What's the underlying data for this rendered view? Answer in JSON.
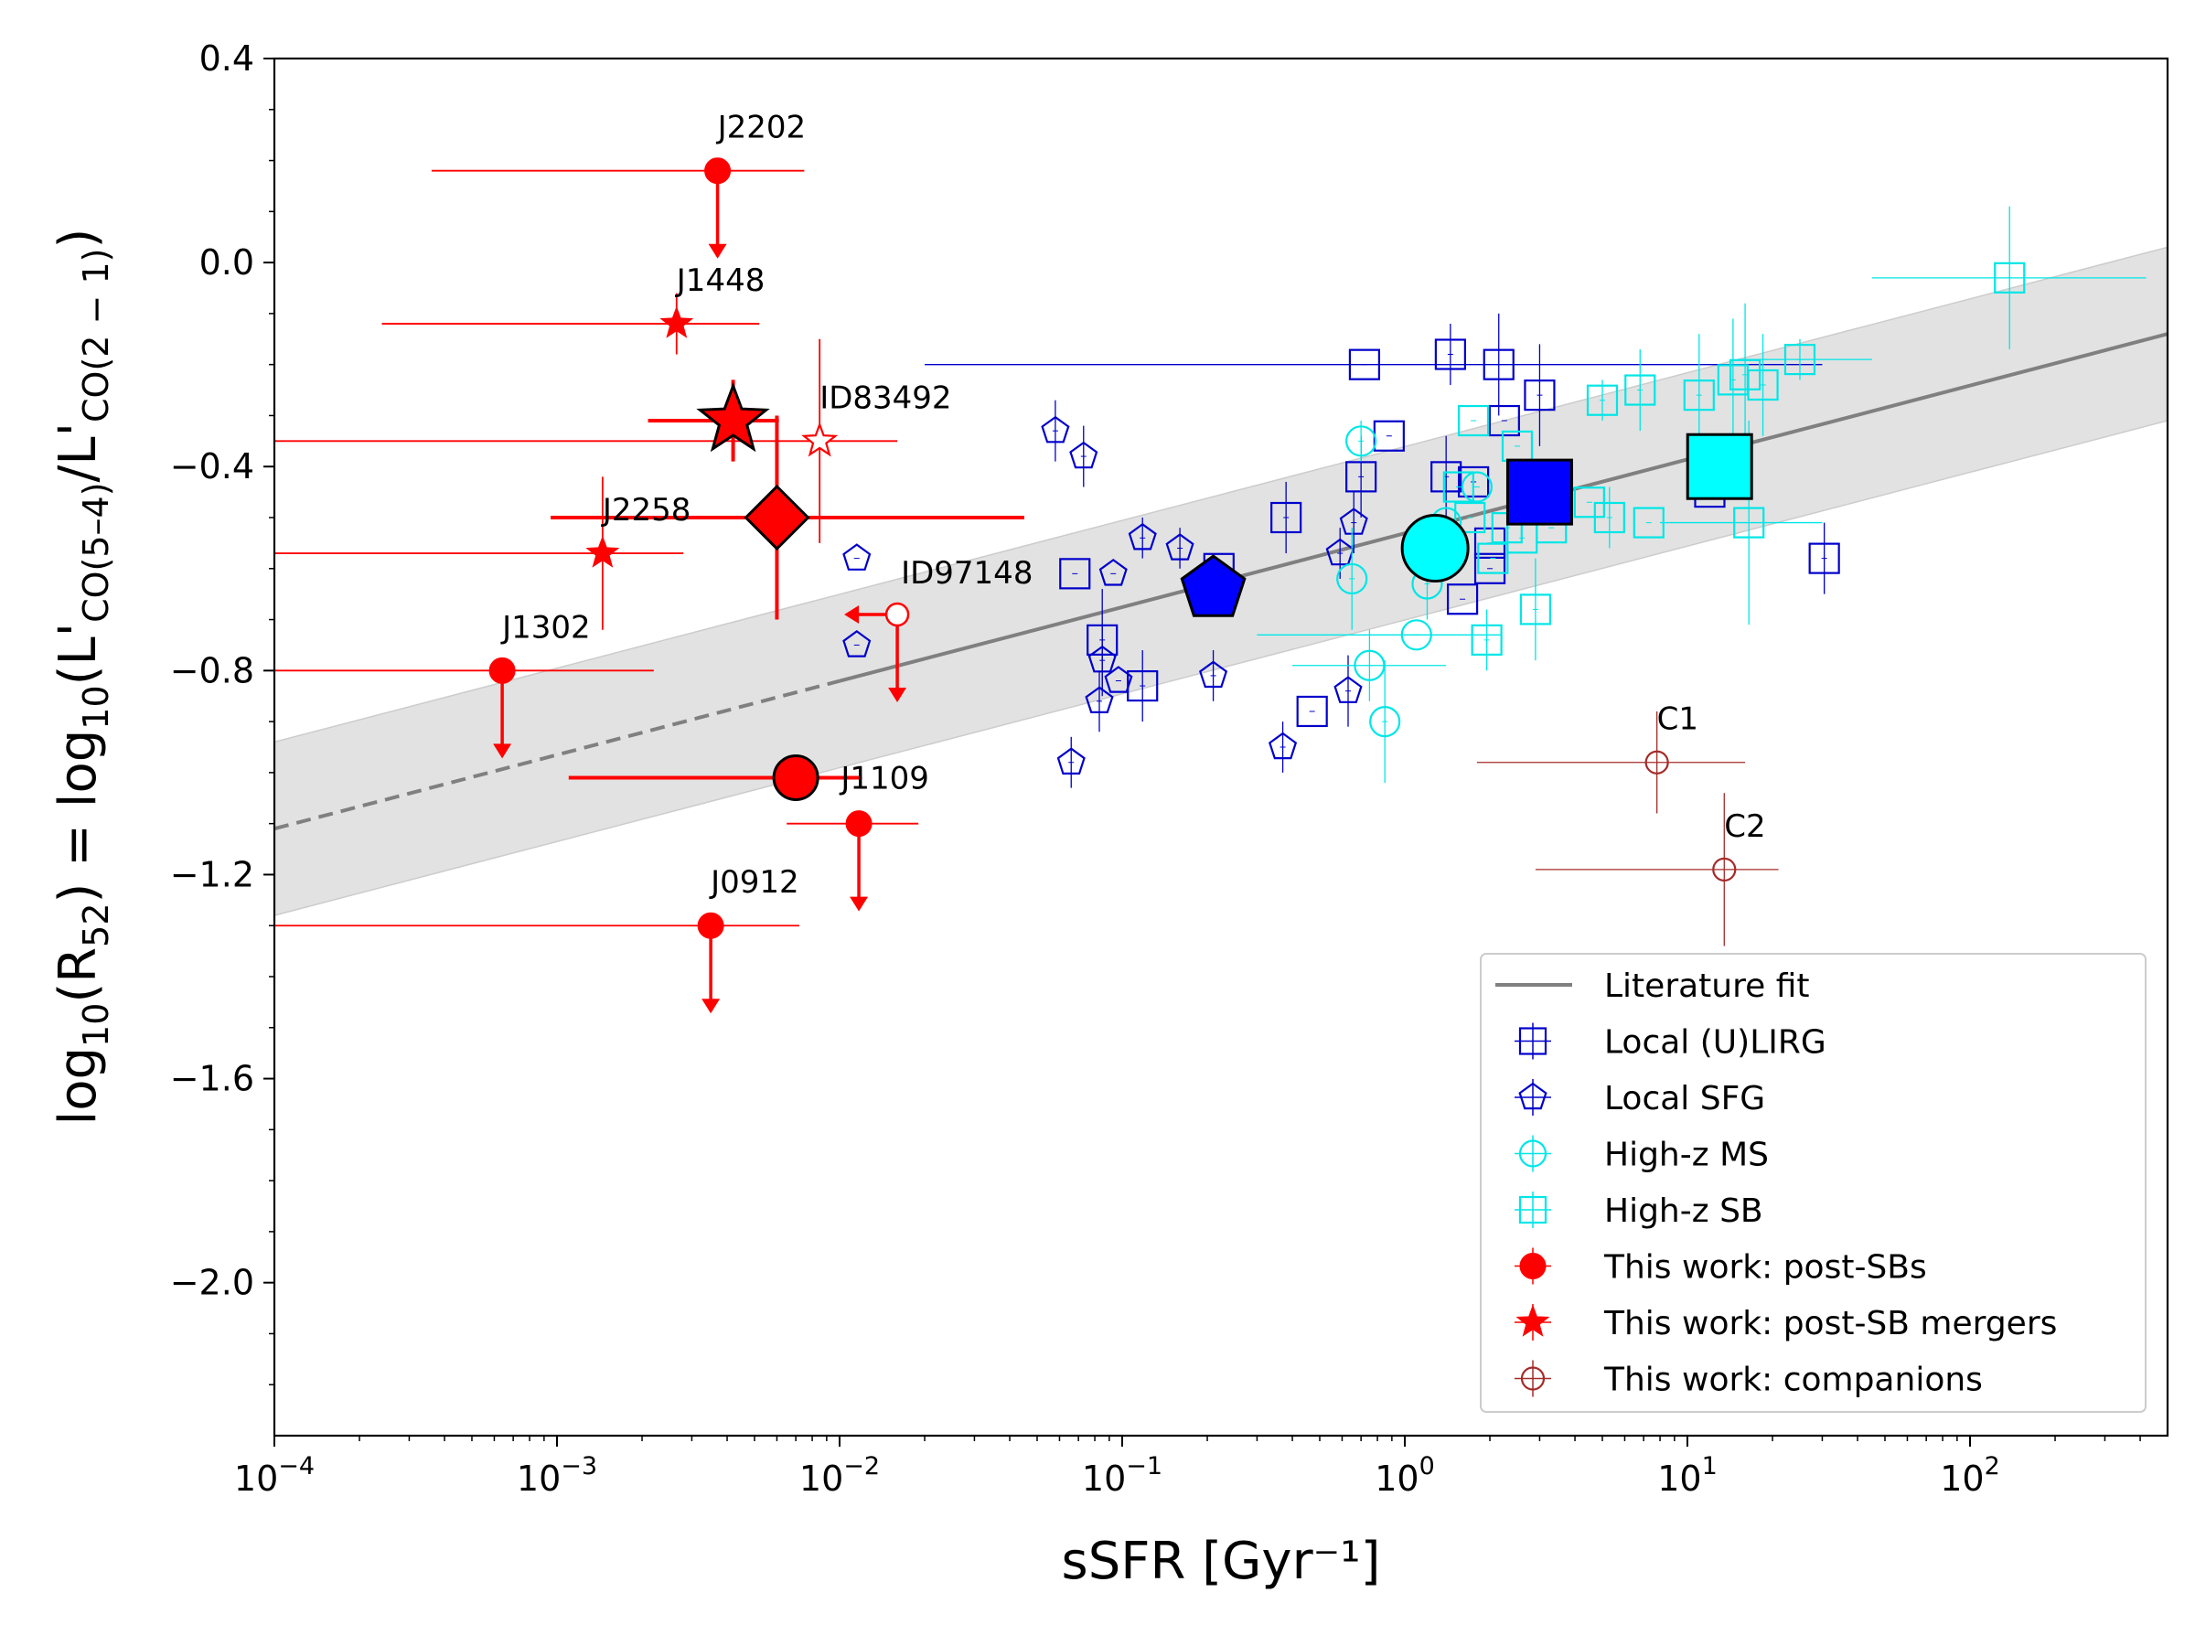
{
  "chart_data": {
    "type": "scatter",
    "xscale": "log",
    "xlim": [
      0.0001,
      500
    ],
    "ylim": [
      -2.3,
      0.4
    ],
    "xlabel": "sSFR [Gyr⁻¹]",
    "ylabel": {
      "prefix": "log",
      "sub10": "10",
      "ratio_open": "(R",
      "ratio_sub": "52",
      "mid": ") = log",
      "sub10b": "10",
      "num": "(L'",
      "num_sub": "CO(5–4)",
      "slash": "/L'",
      "den_sub": "CO(2 − 1)",
      "close": ")"
    },
    "xticks": [
      {
        "value": 0.0001,
        "base": "10",
        "exp": "−4"
      },
      {
        "value": 0.001,
        "base": "10",
        "exp": "−3"
      },
      {
        "value": 0.01,
        "base": "10",
        "exp": "−2"
      },
      {
        "value": 0.1,
        "base": "10",
        "exp": "−1"
      },
      {
        "value": 1,
        "base": "10",
        "exp": "0"
      },
      {
        "value": 10,
        "base": "10",
        "exp": "1"
      },
      {
        "value": 100,
        "base": "10",
        "exp": "2"
      }
    ],
    "yticks": [
      {
        "value": 0.4,
        "label": "0.4"
      },
      {
        "value": 0.0,
        "label": "0.0"
      },
      {
        "value": -0.4,
        "label": "−0.4"
      },
      {
        "value": -0.8,
        "label": "−0.8"
      },
      {
        "value": -1.2,
        "label": "−1.2"
      },
      {
        "value": -1.6,
        "label": "−1.6"
      },
      {
        "value": -2.0,
        "label": "−2.0"
      }
    ],
    "fit": {
      "name": "Literature fit",
      "x_dashed": [
        0.0001,
        0.01
      ],
      "x_solid": [
        0.01,
        500
      ],
      "y_at_xmin": -1.11,
      "y_at_xmax": -0.14,
      "band_halfwidth": 0.17,
      "color": "#808080",
      "band_color": "#e2e2e2"
    },
    "series": [
      {
        "name": "Local (U)LIRG",
        "marker": "square",
        "color": "#0000cc",
        "points": [
          {
            "x": 0.72,
            "y": -0.2,
            "xe": [
              0.02,
              30
            ]
          },
          {
            "x": 1.45,
            "y": -0.18,
            "ye": 0.06
          },
          {
            "x": 2.15,
            "y": -0.2,
            "ye": 0.1
          },
          {
            "x": 3.0,
            "y": -0.26,
            "ye": 0.1
          },
          {
            "x": 2.25,
            "y": -0.31
          },
          {
            "x": 0.88,
            "y": -0.34
          },
          {
            "x": 0.7,
            "y": -0.42,
            "ye": 0.08
          },
          {
            "x": 1.4,
            "y": -0.42,
            "ye": 0.08
          },
          {
            "x": 1.75,
            "y": -0.43
          },
          {
            "x": 0.38,
            "y": -0.5,
            "ye": 0.07
          },
          {
            "x": 0.068,
            "y": -0.61
          },
          {
            "x": 0.22,
            "y": -0.6
          },
          {
            "x": 0.085,
            "y": -0.74,
            "ye": 0.1
          },
          {
            "x": 0.118,
            "y": -0.83,
            "ye": 0.07
          },
          {
            "x": 0.47,
            "y": -0.88
          },
          {
            "x": 1.6,
            "y": -0.66
          },
          {
            "x": 2.0,
            "y": -0.55
          },
          {
            "x": 2.0,
            "y": -0.6
          },
          {
            "x": 12.0,
            "y": -0.45
          },
          {
            "x": 30.5,
            "y": -0.58,
            "ye": 0.07
          }
        ]
      },
      {
        "name": "Local SFG",
        "marker": "pentagon",
        "color": "#0000cc",
        "points": [
          {
            "x": 0.058,
            "y": -0.33,
            "ye": 0.06
          },
          {
            "x": 0.073,
            "y": -0.38,
            "ye": 0.06
          },
          {
            "x": 0.118,
            "y": -0.54,
            "ye": 0.04
          },
          {
            "x": 0.16,
            "y": -0.56,
            "ye": 0.04
          },
          {
            "x": 0.0115,
            "y": -0.58
          },
          {
            "x": 0.093,
            "y": -0.61
          },
          {
            "x": 0.0115,
            "y": -0.75
          },
          {
            "x": 0.085,
            "y": -0.78,
            "ye": 0.07
          },
          {
            "x": 0.097,
            "y": -0.82
          },
          {
            "x": 0.083,
            "y": -0.86,
            "ye": 0.06
          },
          {
            "x": 0.21,
            "y": -0.81,
            "ye": 0.05
          },
          {
            "x": 0.066,
            "y": -0.98,
            "ye": 0.05
          },
          {
            "x": 0.37,
            "y": -0.95,
            "ye": 0.05
          },
          {
            "x": 0.66,
            "y": -0.51,
            "ye": 0.06
          },
          {
            "x": 0.59,
            "y": -0.57,
            "ye": 0.05
          },
          {
            "x": 0.63,
            "y": -0.84,
            "ye": 0.07
          }
        ]
      },
      {
        "name": "High-z MS",
        "marker": "circle",
        "color": "#00e6e6",
        "points": [
          {
            "x": 0.7,
            "y": -0.35,
            "ye": 0.04
          },
          {
            "x": 0.65,
            "y": -0.62,
            "ye": 0.1
          },
          {
            "x": 1.2,
            "y": -0.63,
            "ye": 0.07
          },
          {
            "x": 1.4,
            "y": -0.51
          },
          {
            "x": 1.1,
            "y": -0.73,
            "xe": [
              0.3,
              2.2
            ]
          },
          {
            "x": 0.75,
            "y": -0.79,
            "ye": 0.07,
            "xe": [
              0.4,
              1.4
            ]
          },
          {
            "x": 0.85,
            "y": -0.9,
            "ye": 0.12
          },
          {
            "x": 1.8,
            "y": -0.44
          }
        ]
      },
      {
        "name": "High-z SB",
        "marker": "square",
        "color": "#00e6e6",
        "points": [
          {
            "x": 1.75,
            "y": -0.31
          },
          {
            "x": 2.5,
            "y": -0.36
          },
          {
            "x": 1.55,
            "y": -0.44
          },
          {
            "x": 1.7,
            "y": -0.5
          },
          {
            "x": 2.3,
            "y": -0.52
          },
          {
            "x": 2.6,
            "y": -0.54
          },
          {
            "x": 2.05,
            "y": -0.58
          },
          {
            "x": 1.95,
            "y": -0.74,
            "ye": 0.06
          },
          {
            "x": 2.9,
            "y": -0.68,
            "ye": 0.1
          },
          {
            "x": 3.3,
            "y": -0.52
          },
          {
            "x": 4.5,
            "y": -0.47
          },
          {
            "x": 5.3,
            "y": -0.5,
            "ye": 0.06
          },
          {
            "x": 7.3,
            "y": -0.51
          },
          {
            "x": 5.0,
            "y": -0.27,
            "ye": 0.04
          },
          {
            "x": 6.8,
            "y": -0.25,
            "ye": 0.08
          },
          {
            "x": 11.0,
            "y": -0.26,
            "ye": 0.12
          },
          {
            "x": 14.5,
            "y": -0.23,
            "ye": 0.12
          },
          {
            "x": 16.0,
            "y": -0.22,
            "ye": 0.14
          },
          {
            "x": 18.5,
            "y": -0.24,
            "ye": 0.1
          },
          {
            "x": 25.0,
            "y": -0.19,
            "ye": 0.04,
            "xe": [
              15,
              45
            ]
          },
          {
            "x": 16.5,
            "y": -0.51,
            "ye": 0.2,
            "xe": [
              8,
              30
            ]
          },
          {
            "x": 138,
            "y": -0.03,
            "ye": 0.14,
            "xe": [
              45,
              420
            ]
          }
        ]
      },
      {
        "name": "This work: post-SBs",
        "marker": "filled-circle",
        "color": "#ff0000",
        "points": [
          {
            "label": "J2202",
            "x": 0.0037,
            "y": 0.18,
            "xe": [
              0.00036,
              0.0075
            ],
            "upper": true
          },
          {
            "label": "J1302",
            "x": 0.00064,
            "y": -0.8,
            "xe": [
              0.0001,
              0.0022
            ],
            "upper": true
          },
          {
            "label": "J1109",
            "x": 0.0117,
            "y": -1.1,
            "xe": [
              0.0065,
              0.019
            ],
            "upper": true
          },
          {
            "label": "J0912",
            "x": 0.0035,
            "y": -1.3,
            "xe": [
              0.0001,
              0.0072
            ],
            "upper": true
          }
        ]
      },
      {
        "name": "This work: post-SB mergers",
        "marker": "star",
        "color": "#ff0000",
        "points": [
          {
            "label": "J1448",
            "x": 0.00265,
            "y": -0.12,
            "xe": [
              0.00024,
              0.0052
            ],
            "ye": 0.06
          },
          {
            "label": "ID83492",
            "x": 0.0085,
            "y": -0.35,
            "xe": [
              0.0001,
              0.016
            ],
            "ye": 0.2,
            "open": true
          },
          {
            "label": "J2258",
            "x": 0.00145,
            "y": -0.57,
            "xe": [
              0.0001,
              0.0028
            ],
            "ye": 0.15
          }
        ]
      },
      {
        "name": "This work: companions",
        "marker": "open-circle",
        "color": "#a52a2a",
        "points": [
          {
            "label": "C1",
            "x": 7.8,
            "y": -0.98,
            "xe": [
              1.8,
              16
            ],
            "ye": 0.1
          },
          {
            "label": "C2",
            "x": 13.5,
            "y": -1.19,
            "xe": [
              2.9,
              21
            ],
            "ye": 0.15
          }
        ]
      }
    ],
    "open_circle_point": {
      "label": "ID97148",
      "x": 0.016,
      "y": -0.69,
      "upper": true,
      "left": true
    },
    "averages": [
      {
        "name": "Local (U)LIRG mean",
        "marker": "square",
        "color": "#0000ff",
        "x": 3.0,
        "y": -0.45
      },
      {
        "name": "Local SFG mean",
        "marker": "pentagon",
        "color": "#0000ff",
        "x": 0.21,
        "y": -0.64
      },
      {
        "name": "High-z MS mean",
        "marker": "circle",
        "color": "#00ffff",
        "x": 1.28,
        "y": -0.56
      },
      {
        "name": "High-z SB mean",
        "marker": "square",
        "color": "#00ffff",
        "x": 13.0,
        "y": -0.4
      },
      {
        "name": "post-SB mean",
        "marker": "circle",
        "color": "#ff0000",
        "x": 0.007,
        "y": -1.01,
        "xe": [
          0.0011,
          0.012
        ]
      },
      {
        "name": "post-SB merger mean",
        "marker": "star",
        "color": "#ff0000",
        "x": 0.0042,
        "y": -0.31,
        "xe": [
          0.0021,
          0.0061
        ],
        "ye": 0.08
      },
      {
        "name": "combined mean",
        "marker": "diamond",
        "color": "#ff0000",
        "x": 0.006,
        "y": -0.5,
        "xe": [
          0.00095,
          0.045
        ],
        "ye": 0.2
      }
    ],
    "legend": {
      "position": "lower-right",
      "entries": [
        "Literature fit",
        "Local (U)LIRG",
        "Local SFG",
        "High-z MS",
        "High-z SB",
        "This work: post-SBs",
        "This work: post-SB mergers",
        "This work: companions"
      ]
    }
  }
}
